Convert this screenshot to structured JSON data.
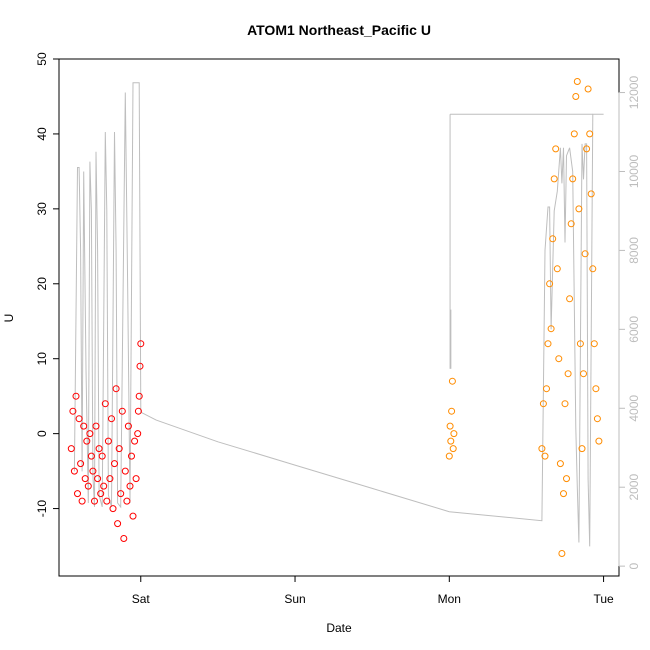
{
  "chart_data": {
    "type": "scatter",
    "title": "ATOM1 Northeast_Pacific U",
    "xlabel": "Date",
    "ylabel": "U",
    "x_ticks": [
      {
        "label": "Sat",
        "t": 2.0
      },
      {
        "label": "Sun",
        "t": 3.0
      },
      {
        "label": "Mon",
        "t": 4.0
      },
      {
        "label": "Tue",
        "t": 5.0
      }
    ],
    "xlim": [
      1.47,
      5.1
    ],
    "ylim": [
      -19,
      50
    ],
    "y_ticks": [
      -10,
      0,
      10,
      20,
      30,
      40,
      50
    ],
    "y2lim": [
      -250,
      12850
    ],
    "y2_ticks": [
      0,
      2000,
      4000,
      6000,
      8000,
      10000,
      12000
    ],
    "grid": false,
    "legend": "none",
    "colors": {
      "series_a": "#ff0000",
      "series_b": "#ff8c00",
      "secondary_line": "#bebebe",
      "axis": "#000000"
    },
    "series": [
      {
        "values": [
          [
            1.55,
            -2
          ],
          [
            1.56,
            3
          ],
          [
            1.57,
            -5
          ],
          [
            1.58,
            5
          ],
          [
            1.59,
            -8
          ],
          [
            1.6,
            2
          ],
          [
            1.61,
            -4
          ],
          [
            1.62,
            -9
          ],
          [
            1.63,
            1
          ],
          [
            1.64,
            -6
          ],
          [
            1.65,
            -1
          ],
          [
            1.66,
            -7
          ],
          [
            1.67,
            0
          ],
          [
            1.68,
            -3
          ],
          [
            1.69,
            -5
          ],
          [
            1.7,
            -9
          ],
          [
            1.71,
            1
          ],
          [
            1.72,
            -6
          ],
          [
            1.73,
            -2
          ],
          [
            1.74,
            -8
          ],
          [
            1.75,
            -3
          ],
          [
            1.76,
            -7
          ],
          [
            1.77,
            4
          ],
          [
            1.78,
            -9
          ],
          [
            1.79,
            -1
          ],
          [
            1.8,
            -6
          ],
          [
            1.81,
            2
          ],
          [
            1.82,
            -10
          ],
          [
            1.83,
            -4
          ],
          [
            1.84,
            6
          ],
          [
            1.85,
            -12
          ],
          [
            1.86,
            -2
          ],
          [
            1.87,
            -8
          ],
          [
            1.88,
            3
          ],
          [
            1.89,
            -14
          ],
          [
            1.9,
            -5
          ],
          [
            1.91,
            -9
          ],
          [
            1.92,
            1
          ],
          [
            1.93,
            -7
          ],
          [
            1.94,
            -3
          ],
          [
            1.95,
            -11
          ],
          [
            1.96,
            -1
          ],
          [
            1.97,
            -6
          ],
          [
            1.98,
            0
          ],
          [
            1.99,
            5
          ],
          [
            2.0,
            12
          ],
          [
            1.995,
            9
          ],
          [
            1.985,
            3
          ]
        ]
      },
      {
        "values": [
          [
            4.0,
            -3
          ],
          [
            4.005,
            1
          ],
          [
            4.01,
            -1
          ],
          [
            4.015,
            3
          ],
          [
            4.02,
            7
          ],
          [
            4.025,
            -2
          ],
          [
            4.03,
            0
          ],
          [
            4.6,
            -2
          ],
          [
            4.61,
            4
          ],
          [
            4.62,
            -3
          ],
          [
            4.63,
            6
          ],
          [
            4.64,
            12
          ],
          [
            4.65,
            20
          ],
          [
            4.66,
            14
          ],
          [
            4.67,
            26
          ],
          [
            4.68,
            34
          ],
          [
            4.69,
            38
          ],
          [
            4.7,
            22
          ],
          [
            4.71,
            10
          ],
          [
            4.72,
            -4
          ],
          [
            4.73,
            -16
          ],
          [
            4.74,
            -8
          ],
          [
            4.75,
            4
          ],
          [
            4.76,
            -6
          ],
          [
            4.77,
            8
          ],
          [
            4.78,
            18
          ],
          [
            4.79,
            28
          ],
          [
            4.8,
            34
          ],
          [
            4.81,
            40
          ],
          [
            4.82,
            45
          ],
          [
            4.83,
            47
          ],
          [
            4.84,
            30
          ],
          [
            4.85,
            12
          ],
          [
            4.86,
            -2
          ],
          [
            4.87,
            8
          ],
          [
            4.88,
            24
          ],
          [
            4.89,
            38
          ],
          [
            4.9,
            46
          ],
          [
            4.91,
            40
          ],
          [
            4.92,
            32
          ],
          [
            4.93,
            22
          ],
          [
            4.94,
            12
          ],
          [
            4.95,
            6
          ],
          [
            4.96,
            2
          ],
          [
            4.97,
            -1
          ]
        ]
      }
    ],
    "secondary_line": {
      "values": [
        [
          1.57,
          2400
        ],
        [
          1.59,
          10100
        ],
        [
          1.6,
          10100
        ],
        [
          1.61,
          8000
        ],
        [
          1.62,
          2400
        ],
        [
          1.63,
          10000
        ],
        [
          1.645,
          5000
        ],
        [
          1.66,
          1600
        ],
        [
          1.67,
          10250
        ],
        [
          1.68,
          9000
        ],
        [
          1.69,
          2300
        ],
        [
          1.7,
          1500
        ],
        [
          1.71,
          10500
        ],
        [
          1.72,
          8000
        ],
        [
          1.73,
          1800
        ],
        [
          1.75,
          1500
        ],
        [
          1.77,
          11000
        ],
        [
          1.78,
          9000
        ],
        [
          1.79,
          1800
        ],
        [
          1.81,
          1500
        ],
        [
          1.83,
          11000
        ],
        [
          1.84,
          8000
        ],
        [
          1.85,
          1600
        ],
        [
          1.87,
          1500
        ],
        [
          1.9,
          12000
        ],
        [
          1.915,
          7000
        ],
        [
          1.93,
          1600
        ],
        [
          1.95,
          12250
        ],
        [
          1.99,
          12250
        ],
        [
          2.0,
          3900
        ],
        [
          2.1,
          3700
        ],
        [
          2.5,
          3150
        ],
        [
          3.0,
          2560
        ],
        [
          3.5,
          1970
        ],
        [
          4.0,
          1380
        ],
        [
          4.6,
          1150
        ],
        [
          4.62,
          8000
        ],
        [
          4.64,
          9100
        ],
        [
          4.65,
          9100
        ],
        [
          4.66,
          6000
        ],
        [
          4.68,
          9000
        ],
        [
          4.7,
          9500
        ],
        [
          4.72,
          10600
        ],
        [
          4.73,
          9700
        ],
        [
          4.74,
          10600
        ],
        [
          4.75,
          8200
        ],
        [
          4.76,
          10400
        ],
        [
          4.78,
          10600
        ],
        [
          4.8,
          10000
        ],
        [
          4.82,
          3500
        ],
        [
          4.83,
          2000
        ],
        [
          4.84,
          600
        ],
        [
          4.86,
          10700
        ],
        [
          4.87,
          9800
        ],
        [
          4.88,
          10700
        ],
        [
          4.89,
          10700
        ],
        [
          4.9,
          2200
        ],
        [
          4.91,
          500
        ],
        [
          4.93,
          11450
        ],
        [
          4.95,
          11450
        ],
        [
          5.0,
          11450
        ]
      ],
      "spikes": [
        [
          4.005,
          7600
        ],
        [
          4.01,
          6500
        ]
      ],
      "upper_segment": [
        [
          4.005,
          11450
        ],
        [
          4.93,
          11450
        ]
      ]
    }
  }
}
